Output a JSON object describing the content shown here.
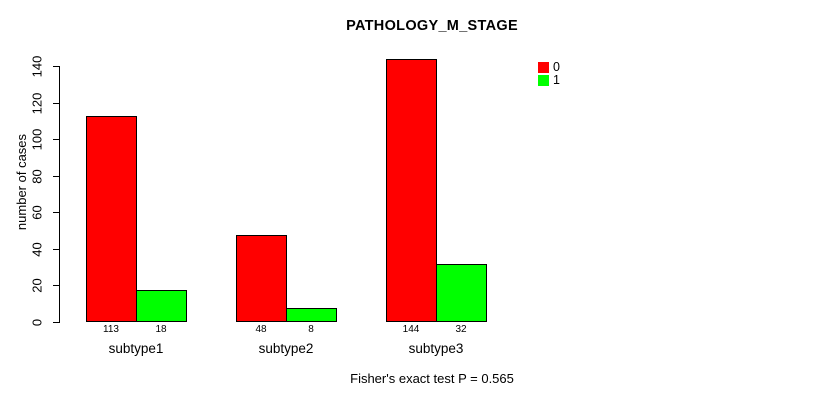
{
  "chart_data": {
    "type": "bar",
    "title": "PATHOLOGY_M_STAGE",
    "ylabel": "number of cases",
    "xlabel": "",
    "categories": [
      "subtype1",
      "subtype2",
      "subtype3"
    ],
    "series": [
      {
        "name": "0",
        "color": "#ff0000",
        "values": [
          113,
          48,
          144
        ]
      },
      {
        "name": "1",
        "color": "#00ff00",
        "values": [
          18,
          8,
          32
        ]
      }
    ],
    "ylim": [
      0,
      140
    ],
    "yticks": [
      0,
      20,
      40,
      60,
      80,
      100,
      120,
      140
    ],
    "grid": false,
    "legend_position": "top-right",
    "bar_value_labels_shown": true,
    "annotation": "Fisher's exact test P = 0.565"
  },
  "colors": {
    "background": "#ffffff",
    "text": "#000000",
    "bar_border": "#000000",
    "series0": "#ff0000",
    "series1": "#00ff00"
  }
}
